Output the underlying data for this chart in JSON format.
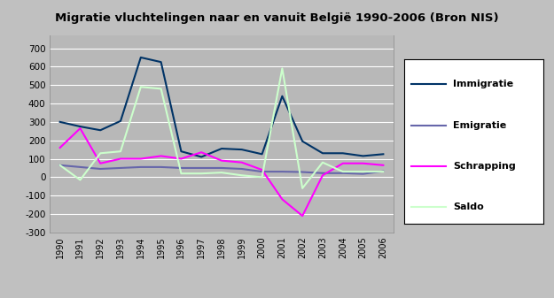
{
  "title": "Migratie vluchtelingen naar en vanuit België 1990-2006 (Bron NIS)",
  "years": [
    1990,
    1991,
    1992,
    1993,
    1994,
    1995,
    1996,
    1997,
    1998,
    1999,
    2000,
    2001,
    2002,
    2003,
    2004,
    2005,
    2006
  ],
  "immigratie": [
    300,
    275,
    255,
    305,
    650,
    625,
    140,
    110,
    155,
    150,
    125,
    440,
    195,
    130,
    130,
    115,
    125
  ],
  "emigratie": [
    65,
    55,
    45,
    50,
    55,
    55,
    50,
    50,
    50,
    45,
    30,
    30,
    28,
    22,
    22,
    18,
    32
  ],
  "schrapping": [
    160,
    265,
    75,
    100,
    100,
    115,
    100,
    135,
    90,
    80,
    40,
    -120,
    -210,
    10,
    75,
    75,
    65
  ],
  "saldo": [
    65,
    -15,
    130,
    140,
    490,
    480,
    20,
    20,
    25,
    10,
    0,
    590,
    -60,
    80,
    30,
    30,
    30
  ],
  "colors": {
    "immigratie": "#003366",
    "emigratie": "#6666aa",
    "schrapping": "#ff00ff",
    "saldo": "#ccffcc"
  },
  "ylim": [
    -300,
    800
  ],
  "yticks": [
    -300,
    -200,
    -100,
    0,
    100,
    200,
    300,
    400,
    500,
    600,
    700,
    800
  ],
  "fig_bg": "#c0c0c0",
  "plot_bg": "#b8b8b8",
  "legend_labels": [
    "Immigratie",
    "Emigratie",
    "Schrapping",
    "Saldo"
  ],
  "title_fontsize": 9.5
}
